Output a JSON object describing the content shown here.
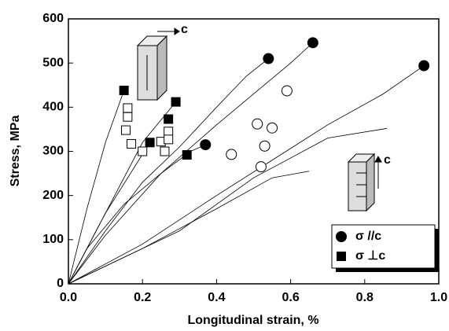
{
  "chart_data": {
    "type": "scatter",
    "x_label": "Longitudinal strain, %",
    "y_label": "Stress, MPa",
    "xlim": [
      0,
      1
    ],
    "xticks": [
      {
        "value": 0,
        "label": "0.0"
      },
      0.2,
      0.4,
      0.6,
      0.8,
      {
        "value": 1,
        "label": "1.0"
      }
    ],
    "ylim": [
      0,
      600
    ],
    "yticks": [
      0,
      100,
      200,
      300,
      400,
      500,
      600
    ],
    "annotations": [
      "c",
      "c"
    ],
    "series": [
      {
        "name": "σ //c",
        "marker": "circle",
        "filled": true,
        "color": "#000",
        "x": [
          0.37,
          0.54,
          0.66,
          0.96
        ],
        "y": [
          315,
          510,
          546,
          494
        ]
      },
      {
        "name": "σ ⊥c",
        "marker": "square",
        "filled": true,
        "color": "#000",
        "x": [
          0.15,
          0.29,
          0.27,
          0.22,
          0.32
        ],
        "y": [
          438,
          412,
          373,
          320,
          292
        ]
      },
      {
        "marker": "circle",
        "filled": false,
        "color": "#000",
        "x": [
          0.59,
          0.51,
          0.55,
          0.53,
          0.44,
          0.52
        ],
        "y": [
          437,
          362,
          353,
          312,
          293,
          265
        ]
      },
      {
        "marker": "square",
        "filled": false,
        "color": "#000",
        "x": [
          0.16,
          0.16,
          0.155,
          0.17,
          0.25,
          0.27,
          0.27,
          0.26,
          0.2
        ],
        "y": [
          398,
          378,
          348,
          317,
          322,
          345,
          327,
          300,
          300
        ]
      },
      {
        "line": true,
        "color": "#000",
        "x": [
          0,
          0.05,
          0.15,
          0.25,
          0.33,
          0.37
        ],
        "y": [
          0,
          80,
          180,
          250,
          300,
          315
        ]
      },
      {
        "line": true,
        "color": "#000",
        "x": [
          0,
          0.1,
          0.2,
          0.3,
          0.4,
          0.48,
          0.54
        ],
        "y": [
          0,
          120,
          230,
          310,
          400,
          470,
          510
        ]
      },
      {
        "line": true,
        "color": "#000",
        "x": [
          0,
          0.1,
          0.25,
          0.4,
          0.5,
          0.6,
          0.66
        ],
        "y": [
          0,
          110,
          250,
          360,
          430,
          500,
          546
        ]
      },
      {
        "line": true,
        "color": "#000",
        "x": [
          0,
          0.2,
          0.4,
          0.55,
          0.7,
          0.85,
          0.96
        ],
        "y": [
          0,
          90,
          200,
          280,
          360,
          430,
          494
        ]
      },
      {
        "line": true,
        "color": "#000",
        "x": [
          0,
          0.05,
          0.1,
          0.15
        ],
        "y": [
          0,
          170,
          320,
          438
        ]
      },
      {
        "line": true,
        "color": "#000",
        "x": [
          0,
          0.1,
          0.2,
          0.29
        ],
        "y": [
          0,
          160,
          320,
          412
        ]
      },
      {
        "line": true,
        "color": "#000",
        "x": [
          0,
          0.1,
          0.22
        ],
        "y": [
          0,
          160,
          320
        ]
      },
      {
        "line": true,
        "color": "#000",
        "x": [
          0,
          0.3,
          0.5,
          0.7,
          0.86
        ],
        "y": [
          0,
          120,
          240,
          330,
          352
        ]
      },
      {
        "line": true,
        "color": "#000",
        "x": [
          0,
          0.2,
          0.4,
          0.55,
          0.65
        ],
        "y": [
          0,
          80,
          170,
          240,
          255
        ]
      }
    ]
  }
}
